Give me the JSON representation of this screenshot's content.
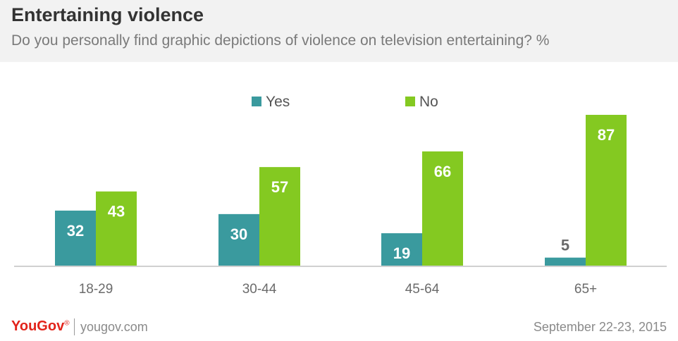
{
  "header": {
    "title": "Entertaining violence",
    "subtitle": "Do you personally find graphic depictions of violence on television entertaining? %"
  },
  "footer": {
    "brand": "YouGov",
    "url": "yougov.com",
    "date": "September 22-23, 2015"
  },
  "colors": {
    "yes": "#3a9a9e",
    "no": "#84c921",
    "label_inside": "#ffffff",
    "label_outside": "#6b6b6b",
    "axis": "#d0d0d0",
    "tick_text": "#6b6b6b"
  },
  "chart_data": {
    "type": "bar",
    "title": "Entertaining violence",
    "subtitle": "Do you personally find graphic depictions of violence on television entertaining? %",
    "categories": [
      "18-29",
      "30-44",
      "45-64",
      "65+"
    ],
    "series": [
      {
        "name": "Yes",
        "values": [
          32,
          30,
          19,
          5
        ]
      },
      {
        "name": "No",
        "values": [
          43,
          57,
          66,
          87
        ]
      }
    ],
    "ylim": [
      0,
      87
    ],
    "grid": false,
    "legend": "top-center"
  }
}
